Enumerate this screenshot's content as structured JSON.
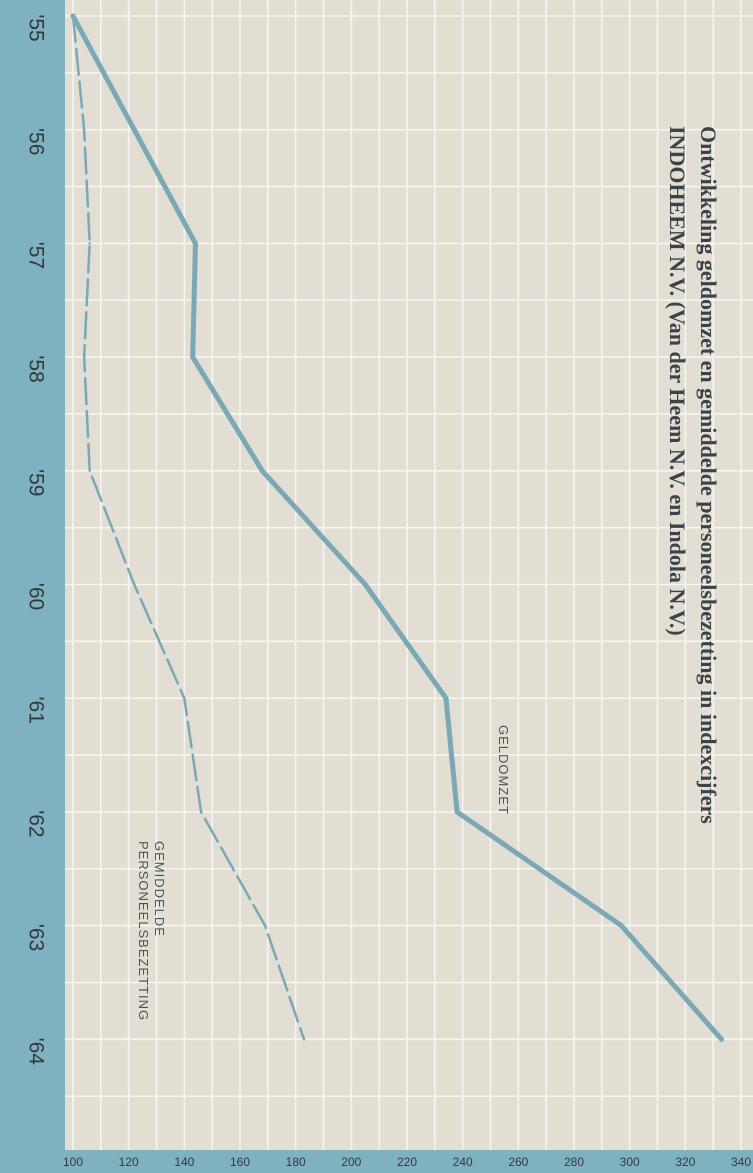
{
  "chart_data": {
    "type": "line",
    "title_line1": "Ontwikkeling geldomzet en gemiddelde personeelsbezetting in indexcijfers",
    "title_line2": "INDOHEEM N.V. (Van der Heem N.V. en Indola N.V.)",
    "categories": [
      "'55",
      "'56",
      "'57",
      "'58",
      "'59",
      "'60",
      "'61",
      "'62",
      "'63",
      "'64"
    ],
    "yticks": [
      100,
      120,
      140,
      160,
      180,
      200,
      220,
      240,
      260,
      280,
      300,
      320,
      340
    ],
    "ylim": [
      100,
      340
    ],
    "grid": true,
    "series": [
      {
        "name": "GELDOMZET",
        "style": "solid",
        "values": [
          100,
          122,
          144,
          143,
          168,
          205,
          234,
          238,
          297,
          333
        ]
      },
      {
        "name_line1": "GEMIDDELDE",
        "name_line2": "PERSONEELSBEZETTING",
        "style": "dashed",
        "values": [
          100,
          104,
          106,
          104,
          106,
          122,
          140,
          146,
          169,
          183
        ]
      }
    ],
    "colors": {
      "background": "#e2ded3",
      "band": "#7fb2c1",
      "line": "#7aa8b4",
      "grid": "#f6f5f1",
      "text": "#3a4448"
    }
  }
}
